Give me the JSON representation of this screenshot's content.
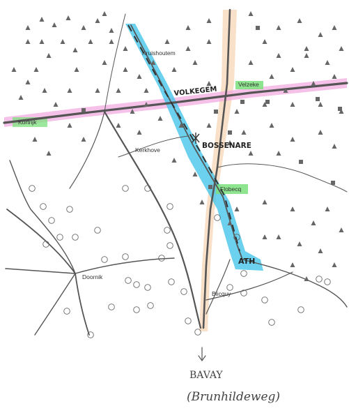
{
  "places": {
    "kruishoutem": "Kruishoutem",
    "velzeke": "Velzeke",
    "kortrijk": "Kortrijk",
    "kerkhove": "Kerkhove",
    "flobecq": "Flobecq",
    "doornik": "Doornik",
    "blicquy": "Blicquy"
  },
  "annotations": {
    "volkegem": "VOLKEGEM",
    "bossenare": "BOSSENARE",
    "ath": "ATH",
    "bavay": "BAVAY",
    "brunhildeweg": "(Brunhildeweg)"
  },
  "highlight_colors": {
    "route_blue": "#3cc3e6",
    "road_pink": "#e88ad0",
    "label_green": "#5fd25f",
    "road_peach": "#f4c89a"
  },
  "symbols": {
    "triangle": "triangle-marker",
    "circle": "circle-marker",
    "square": "square-marker"
  }
}
